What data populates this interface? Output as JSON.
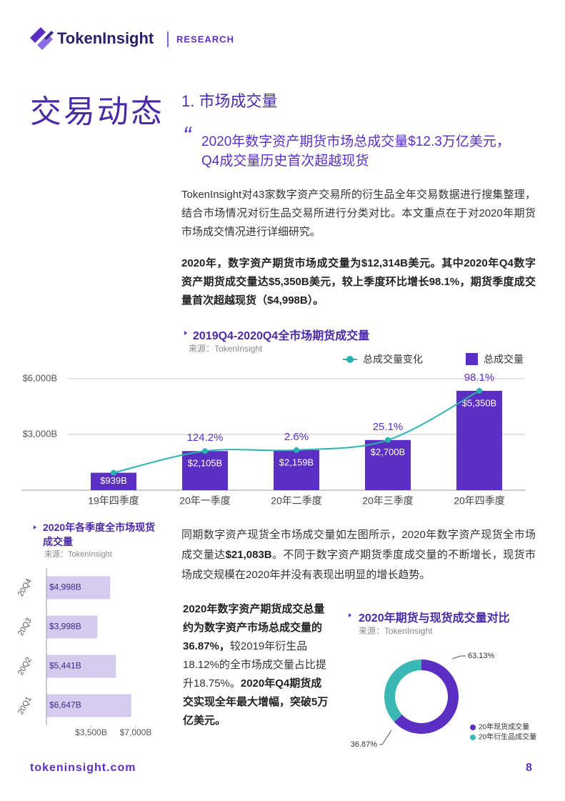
{
  "header": {
    "brand": "TokenInsight",
    "label": "RESEARCH"
  },
  "section_title": "交易动态",
  "subsection_title": "1. 市场成交量",
  "quote": [
    "2020年数字资产期货市场总成交量$12.3万亿美元，",
    "Q4成交量历史首次超越现货"
  ],
  "intro": "TokenInsight对43家数字资产交易所的衍生品全年交易数据进行搜集整理，结合市场情况对衍生品交易所进行分类对比。本文重点在于对2020年期货市场成交情况进行详细研究。",
  "highlight": "2020年，数字资产期货市场成交量为$12,314B美元。其中2020年Q4数字资产期货成交量达$5,350B美元，较上季度环比增长98.1%，期货季度成交量首次超越现货（$4,998B）。",
  "spot_text": [
    "同期数字资产现货全市场成交量如左图所示，2020年数字资产现货全市场成交量达",
    "$21,083B",
    "。不同于数字资产期货季度成交量的不断增长，现货市场成交规模在2020年并没有表现出明显的增长趋势。"
  ],
  "summary": [
    "2020年数字资产期货成交总量约为数字资产市场总成交量的36.87%，",
    "较2019年衍生品18.12%的全市场成交量占比提升18.75%。",
    "2020年Q4期货成交实现全年最大增幅，突破5万亿美元。"
  ],
  "chart_data": [
    {
      "type": "bar",
      "title": "2019Q4-2020Q4全市场期货成交量",
      "source": "来源：TokenInsight",
      "categories": [
        "19年四季度",
        "20年一季度",
        "20年二季度",
        "20年三季度",
        "20年四季度"
      ],
      "series": [
        {
          "name": "总成交量",
          "color": "#5a2fc2",
          "values": [
            939,
            2105,
            2159,
            2700,
            5350
          ],
          "value_labels": [
            "$939B",
            "$2,105B",
            "$2,159B",
            "$2,700B",
            "$5,350B"
          ]
        },
        {
          "name": "总成交量变化",
          "color": "#2bb3b0",
          "type": "line",
          "labels": [
            null,
            "124.2%",
            "2.6%",
            "25.1%",
            "98.1%"
          ]
        }
      ],
      "ylim": [
        0,
        6000
      ],
      "yticks": [
        {
          "value": 3000,
          "label": "$3,000B"
        },
        {
          "value": 6000,
          "label": "$6,000B"
        }
      ],
      "grid": true
    },
    {
      "type": "hbar",
      "title": "2020年各季度全市场现货成交量",
      "source": "来源：TokenInsight",
      "categories": [
        "20Q4",
        "20Q3",
        "20Q2",
        "20Q1"
      ],
      "values": [
        4998,
        3998,
        5441,
        6647
      ],
      "value_labels": [
        "$4,998B",
        "$3,998B",
        "$5,441B",
        "$6,647B"
      ],
      "color": "#d5cbef",
      "xlim": [
        0,
        7000
      ],
      "xticks": [
        {
          "value": 3500,
          "label": "$3,500B"
        },
        {
          "value": 7000,
          "label": "$7,000B"
        }
      ]
    },
    {
      "type": "pie",
      "title": "2020年期货与现货成交量对比",
      "source": "来源：TokenInsight",
      "categories": [
        "20年现货成交量",
        "20年衍生品成交量"
      ],
      "values": [
        63.13,
        36.87
      ],
      "value_labels": [
        "63.13%",
        "36.87%"
      ],
      "colors": [
        "#5a2fc2",
        "#3bb7b4"
      ]
    }
  ],
  "footer": {
    "site": "tokeninsight.com",
    "page": 8
  }
}
